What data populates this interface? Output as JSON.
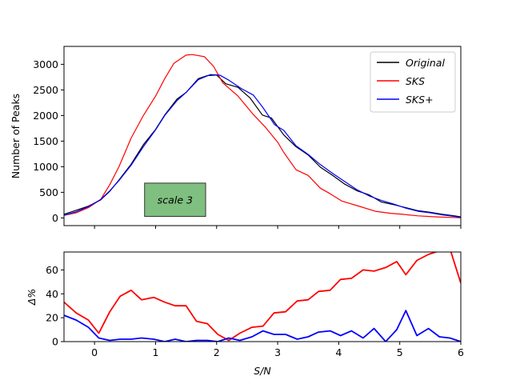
{
  "chart_data": [
    {
      "type": "line",
      "ylabel": "Number of Peaks",
      "xlim": [
        -0.5,
        6
      ],
      "ylim": [
        -150,
        3350
      ],
      "xticks": [
        0,
        1,
        2,
        3,
        4,
        5,
        6
      ],
      "yticks": [
        0,
        500,
        1000,
        1500,
        2000,
        2500,
        3000
      ],
      "legend": {
        "position": "top-right",
        "entries": [
          {
            "label": "Original",
            "color": "#000000"
          },
          {
            "label": "SKS",
            "color": "#ff0000"
          },
          {
            "label": "SKS$+$",
            "display": "SKS+",
            "color": "#0000ff"
          }
        ]
      },
      "annotation": {
        "text": "scale 3",
        "box_color": "#7fbf7f",
        "x_range": [
          0.82,
          1.82
        ],
        "y_range": [
          30,
          680
        ]
      },
      "series": [
        {
          "name": "Original",
          "color": "#000000",
          "x": [
            -0.5,
            -0.3,
            -0.1,
            0.1,
            0.25,
            0.4,
            0.6,
            0.8,
            1.0,
            1.15,
            1.35,
            1.5,
            1.7,
            1.85,
            2.0,
            2.15,
            2.35,
            2.55,
            2.75,
            2.9,
            3.1,
            3.3,
            3.5,
            3.7,
            3.9,
            4.1,
            4.3,
            4.5,
            4.7,
            4.9,
            5.1,
            5.3,
            5.5,
            5.7,
            5.9,
            6.0
          ],
          "y": [
            70,
            150,
            230,
            350,
            520,
            740,
            1050,
            1430,
            1730,
            2010,
            2320,
            2450,
            2720,
            2780,
            2790,
            2620,
            2550,
            2340,
            2010,
            1950,
            1620,
            1390,
            1230,
            990,
            830,
            660,
            530,
            450,
            310,
            260,
            200,
            140,
            110,
            70,
            40,
            20
          ]
        },
        {
          "name": "SKS",
          "color": "#ff0000",
          "x": [
            -0.5,
            -0.3,
            -0.1,
            0.1,
            0.25,
            0.4,
            0.6,
            0.8,
            1.0,
            1.15,
            1.3,
            1.5,
            1.6,
            1.8,
            1.95,
            2.1,
            2.35,
            2.6,
            2.8,
            3.0,
            3.1,
            3.3,
            3.5,
            3.7,
            3.85,
            4.05,
            4.3,
            4.6,
            4.85,
            5.05,
            5.3,
            5.6,
            5.85,
            6.0
          ],
          "y": [
            50,
            100,
            200,
            360,
            650,
            1000,
            1560,
            2000,
            2380,
            2720,
            3020,
            3180,
            3190,
            3150,
            2960,
            2640,
            2380,
            2020,
            1770,
            1480,
            1280,
            940,
            830,
            580,
            480,
            330,
            240,
            130,
            90,
            70,
            40,
            20,
            10,
            5
          ]
        },
        {
          "name": "SKS+",
          "color": "#0000ff",
          "x": [
            -0.5,
            -0.3,
            -0.1,
            0.1,
            0.25,
            0.4,
            0.6,
            0.8,
            1.0,
            1.15,
            1.35,
            1.5,
            1.7,
            1.9,
            2.05,
            2.2,
            2.4,
            2.6,
            2.75,
            2.95,
            3.1,
            3.3,
            3.5,
            3.7,
            3.9,
            4.1,
            4.3,
            4.5,
            4.7,
            4.9,
            5.1,
            5.3,
            5.5,
            5.7,
            5.9,
            6.0
          ],
          "y": [
            50,
            120,
            220,
            360,
            530,
            730,
            1030,
            1390,
            1720,
            2000,
            2290,
            2450,
            2700,
            2800,
            2790,
            2690,
            2530,
            2400,
            2170,
            1820,
            1710,
            1410,
            1240,
            1040,
            870,
            710,
            550,
            430,
            340,
            270,
            190,
            130,
            100,
            60,
            30,
            10
          ]
        }
      ]
    },
    {
      "type": "line",
      "ylabel": "Δ%",
      "xlabel": "S/N",
      "xlim": [
        -0.5,
        6
      ],
      "ylim": [
        0,
        75
      ],
      "xticks": [
        0,
        1,
        2,
        3,
        4,
        5,
        6
      ],
      "yticks": [
        0,
        20,
        40,
        60
      ],
      "series": [
        {
          "name": "SKS Δ%",
          "color": "#ff0000",
          "x": [
            -0.5,
            -0.3,
            -0.1,
            0.07,
            0.25,
            0.42,
            0.6,
            0.77,
            0.97,
            1.15,
            1.32,
            1.5,
            1.67,
            1.85,
            2.02,
            2.2,
            2.38,
            2.58,
            2.76,
            2.94,
            3.13,
            3.32,
            3.5,
            3.67,
            3.86,
            4.03,
            4.21,
            4.4,
            4.58,
            4.77,
            4.95,
            5.1,
            5.28,
            5.47,
            5.65,
            5.82,
            6.0
          ],
          "y": [
            33,
            24,
            18,
            7,
            25,
            38,
            43,
            35,
            37,
            33,
            30,
            30,
            17,
            15,
            6,
            1,
            7,
            12,
            13,
            24,
            25,
            34,
            35,
            42,
            43,
            52,
            53,
            60,
            59,
            62,
            67,
            56,
            68,
            73,
            76,
            78,
            49
          ]
        },
        {
          "name": "SKS+ Δ%",
          "color": "#0000ff",
          "x": [
            -0.5,
            -0.3,
            -0.1,
            0.07,
            0.25,
            0.42,
            0.6,
            0.77,
            0.97,
            1.15,
            1.32,
            1.5,
            1.67,
            1.85,
            2.02,
            2.2,
            2.38,
            2.58,
            2.76,
            2.94,
            3.13,
            3.32,
            3.5,
            3.67,
            3.86,
            4.03,
            4.21,
            4.4,
            4.58,
            4.77,
            4.95,
            5.1,
            5.28,
            5.47,
            5.65,
            5.82,
            6.0
          ],
          "y": [
            22,
            18,
            12,
            3,
            1,
            2,
            2,
            3,
            2,
            0,
            2,
            0,
            1,
            1,
            0,
            3,
            1,
            4,
            9,
            6,
            6,
            2,
            4,
            8,
            9,
            5,
            9,
            3,
            11,
            0,
            10,
            26,
            5,
            11,
            4,
            3,
            0
          ]
        }
      ]
    }
  ]
}
